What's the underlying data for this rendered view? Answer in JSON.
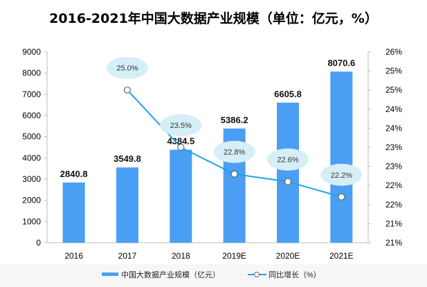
{
  "chart_data": {
    "type": "bar+line",
    "title": "2016-2021年中国大数据产业规模（单位：亿元，%）",
    "categories": [
      "2016",
      "2017",
      "2018",
      "2019E",
      "2020E",
      "2021E"
    ],
    "series": [
      {
        "name": "中国大数据产业规模（亿元）",
        "type": "bar",
        "axis": "left",
        "color": "#4a9ff5",
        "values": [
          2840.8,
          3549.8,
          4384.5,
          5386.2,
          6605.8,
          8070.6
        ],
        "labels": [
          "2840.8",
          "3549.8",
          "4384.5",
          "5386.2",
          "6605.8",
          "8070.6"
        ]
      },
      {
        "name": "同比增长（%）",
        "type": "line",
        "axis": "right",
        "color": "#1aa6e6",
        "values": [
          null,
          25.0,
          23.5,
          22.8,
          22.6,
          22.2
        ],
        "labels": [
          "",
          "25.0%",
          "23.5%",
          "22.8%",
          "22.6%",
          "22.2%"
        ]
      }
    ],
    "left_axis": {
      "min": 0,
      "max": 9000,
      "ticks": [
        "0",
        "1000",
        "2000",
        "3000",
        "4000",
        "5000",
        "6000",
        "7000",
        "8000",
        "9000"
      ]
    },
    "right_axis": {
      "min": 21,
      "max": 26,
      "ticks": [
        "21%",
        "21%",
        "22%",
        "22%",
        "23%",
        "23%",
        "24%",
        "24%",
        "25%",
        "25%",
        "26%"
      ]
    },
    "grid": false,
    "legend": "bottom"
  }
}
